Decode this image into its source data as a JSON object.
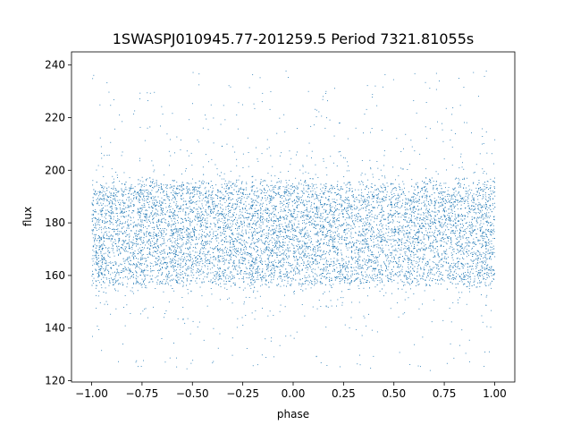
{
  "chart_data": {
    "type": "scatter",
    "title": "1SWASPJ010945.77-201259.5 Period 7321.81055s",
    "xlabel": "phase",
    "ylabel": "flux",
    "xlim": [
      -1.1,
      1.1
    ],
    "ylim": [
      119.5,
      245
    ],
    "x_ticks": [
      -1.0,
      -0.75,
      -0.5,
      -0.25,
      0.0,
      0.25,
      0.5,
      0.75,
      1.0
    ],
    "x_tick_labels": [
      "−1.00",
      "−0.75",
      "−0.50",
      "−0.25",
      "0.00",
      "0.25",
      "0.50",
      "0.75",
      "1.00"
    ],
    "y_ticks": [
      120,
      140,
      160,
      180,
      200,
      220,
      240
    ],
    "y_tick_labels": [
      "120",
      "140",
      "160",
      "180",
      "200",
      "220",
      "240"
    ],
    "grid": false,
    "legend": "none",
    "point_color": "#1f77b4",
    "series": [
      {
        "phase_range": [
          -1.0,
          1.0
        ],
        "flux_core_range": [
          157,
          195
        ],
        "flux_core_center": 178,
        "flux_outlier_range": [
          124,
          238
        ],
        "note_points": "dense band of tiny points across full phase range"
      }
    ]
  }
}
